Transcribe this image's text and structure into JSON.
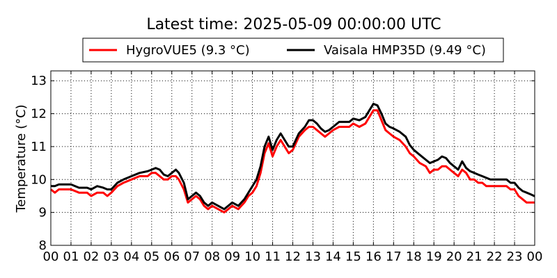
{
  "chart_data": {
    "type": "line",
    "title": "Latest time: 2025-05-09 00:00:00 UTC",
    "xlabel": "",
    "ylabel": "Temperature (°C)",
    "xlim": [
      0,
      24
    ],
    "ylim": [
      8,
      13.3
    ],
    "x_ticks": [
      "00",
      "01",
      "02",
      "03",
      "04",
      "05",
      "06",
      "07",
      "08",
      "09",
      "10",
      "11",
      "12",
      "13",
      "14",
      "15",
      "16",
      "17",
      "18",
      "19",
      "20",
      "21",
      "22",
      "23",
      "00"
    ],
    "y_ticks": [
      8,
      9,
      10,
      11,
      12,
      13
    ],
    "grid": true,
    "legend_position": "top",
    "series": [
      {
        "name": "HygroVUE5 (9.3 °C)",
        "color": "#ff0000",
        "x": [
          0,
          0.2,
          0.4,
          0.6,
          1.0,
          1.4,
          1.8,
          2.0,
          2.3,
          2.6,
          2.8,
          3.0,
          3.3,
          3.6,
          4.0,
          4.4,
          4.8,
          5.0,
          5.2,
          5.4,
          5.6,
          5.8,
          6.0,
          6.2,
          6.35,
          6.6,
          6.8,
          7.0,
          7.2,
          7.4,
          7.6,
          7.8,
          8.0,
          8.3,
          8.6,
          8.8,
          9.0,
          9.3,
          9.6,
          9.8,
          10.0,
          10.2,
          10.4,
          10.6,
          10.8,
          11.0,
          11.2,
          11.4,
          11.6,
          11.8,
          12.0,
          12.3,
          12.6,
          12.8,
          13.0,
          13.2,
          13.4,
          13.6,
          13.8,
          14.0,
          14.3,
          14.6,
          14.8,
          15.0,
          15.3,
          15.6,
          15.8,
          16.0,
          16.2,
          16.4,
          16.6,
          16.8,
          17.0,
          17.3,
          17.6,
          17.8,
          18.0,
          18.3,
          18.6,
          18.8,
          19.0,
          19.2,
          19.4,
          19.6,
          19.8,
          20.0,
          20.2,
          20.4,
          20.6,
          20.8,
          21.0,
          21.2,
          21.4,
          21.6,
          21.8,
          22.0,
          22.3,
          22.6,
          22.8,
          23.0,
          23.2,
          23.4,
          23.6,
          23.8,
          24.0
        ],
        "y": [
          9.7,
          9.6,
          9.7,
          9.7,
          9.7,
          9.6,
          9.6,
          9.5,
          9.6,
          9.6,
          9.5,
          9.6,
          9.8,
          9.9,
          10.0,
          10.1,
          10.1,
          10.2,
          10.2,
          10.1,
          10.0,
          10.0,
          10.1,
          10.1,
          10.0,
          9.7,
          9.3,
          9.4,
          9.5,
          9.4,
          9.2,
          9.1,
          9.2,
          9.1,
          9.0,
          9.1,
          9.2,
          9.1,
          9.3,
          9.5,
          9.6,
          9.8,
          10.2,
          10.8,
          11.1,
          10.7,
          11.0,
          11.2,
          11.0,
          10.8,
          10.9,
          11.3,
          11.5,
          11.6,
          11.6,
          11.5,
          11.4,
          11.3,
          11.4,
          11.5,
          11.6,
          11.6,
          11.6,
          11.7,
          11.6,
          11.7,
          11.9,
          12.1,
          12.1,
          11.8,
          11.5,
          11.4,
          11.3,
          11.2,
          11.0,
          10.8,
          10.7,
          10.5,
          10.4,
          10.2,
          10.3,
          10.3,
          10.4,
          10.4,
          10.3,
          10.2,
          10.1,
          10.3,
          10.2,
          10.0,
          10.0,
          9.9,
          9.9,
          9.8,
          9.8,
          9.8,
          9.8,
          9.8,
          9.7,
          9.7,
          9.5,
          9.4,
          9.3,
          9.3,
          9.3
        ]
      },
      {
        "name": "Vaisala HMP35D (9.49 °C)",
        "color": "#000000",
        "x": [
          0,
          0.2,
          0.4,
          0.6,
          1.0,
          1.4,
          1.8,
          2.0,
          2.3,
          2.6,
          2.8,
          3.0,
          3.3,
          3.6,
          4.0,
          4.4,
          4.8,
          5.0,
          5.2,
          5.4,
          5.6,
          5.8,
          6.0,
          6.2,
          6.35,
          6.6,
          6.8,
          7.0,
          7.2,
          7.4,
          7.6,
          7.8,
          8.0,
          8.3,
          8.6,
          8.8,
          9.0,
          9.3,
          9.6,
          9.8,
          10.0,
          10.2,
          10.4,
          10.6,
          10.8,
          11.0,
          11.2,
          11.4,
          11.6,
          11.8,
          12.0,
          12.3,
          12.6,
          12.8,
          13.0,
          13.2,
          13.4,
          13.6,
          13.8,
          14.0,
          14.3,
          14.6,
          14.8,
          15.0,
          15.3,
          15.6,
          15.8,
          16.0,
          16.2,
          16.4,
          16.6,
          16.8,
          17.0,
          17.3,
          17.6,
          17.8,
          18.0,
          18.3,
          18.6,
          18.8,
          19.0,
          19.2,
          19.4,
          19.6,
          19.8,
          20.0,
          20.2,
          20.4,
          20.6,
          20.8,
          21.0,
          21.2,
          21.4,
          21.6,
          21.8,
          22.0,
          22.3,
          22.6,
          22.8,
          23.0,
          23.2,
          23.4,
          23.6,
          23.8,
          24.0
        ],
        "y": [
          9.8,
          9.8,
          9.85,
          9.85,
          9.85,
          9.75,
          9.75,
          9.7,
          9.8,
          9.75,
          9.7,
          9.7,
          9.9,
          10.0,
          10.1,
          10.2,
          10.25,
          10.3,
          10.35,
          10.3,
          10.15,
          10.1,
          10.2,
          10.3,
          10.2,
          9.9,
          9.4,
          9.5,
          9.6,
          9.5,
          9.3,
          9.2,
          9.3,
          9.2,
          9.1,
          9.2,
          9.3,
          9.2,
          9.4,
          9.6,
          9.8,
          10.0,
          10.4,
          11.0,
          11.3,
          10.9,
          11.2,
          11.4,
          11.2,
          11.0,
          11.0,
          11.4,
          11.6,
          11.8,
          11.8,
          11.7,
          11.55,
          11.45,
          11.5,
          11.6,
          11.75,
          11.75,
          11.75,
          11.85,
          11.8,
          11.9,
          12.1,
          12.3,
          12.25,
          12.0,
          11.7,
          11.6,
          11.55,
          11.45,
          11.3,
          11.05,
          10.9,
          10.75,
          10.6,
          10.5,
          10.55,
          10.6,
          10.7,
          10.65,
          10.5,
          10.4,
          10.3,
          10.55,
          10.35,
          10.25,
          10.2,
          10.15,
          10.1,
          10.05,
          10.0,
          10.0,
          10.0,
          10.0,
          9.9,
          9.9,
          9.75,
          9.65,
          9.6,
          9.55,
          9.49
        ]
      }
    ]
  }
}
